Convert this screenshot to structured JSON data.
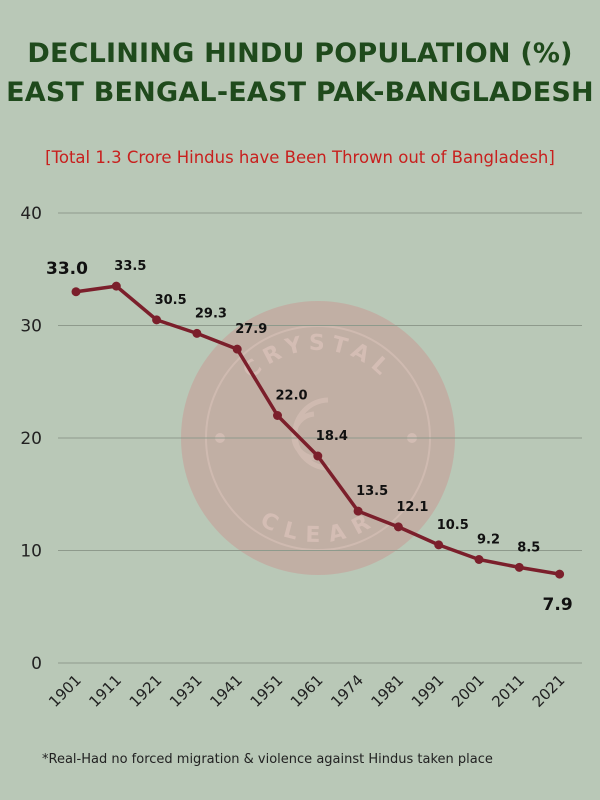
{
  "header": {
    "title_line1": "DECLINING HINDU POPULATION (%)",
    "title_line2": "EAST BENGAL-EAST PAK-BANGLADESH",
    "subtitle": "[Total 1.3 Crore Hindus have Been Thrown out of Bangladesh]"
  },
  "watermark": {
    "top_text": "CRYSTAL",
    "bottom_text": "CLEAR",
    "color": "#c89a95"
  },
  "footnote": "*Real-Had no forced migration &  violence against Hindus taken place",
  "colors": {
    "background": "#b9c8b7",
    "title": "#1f4a1c",
    "subtitle": "#c8201e",
    "line": "#7b1f2b",
    "grid": "#8e9a8c"
  },
  "chart_data": {
    "type": "line",
    "title": "DECLINING HINDU POPULATION (%)",
    "categories": [
      "1901",
      "1911",
      "1921",
      "1931",
      "1941",
      "1951",
      "1961",
      "1974",
      "1981",
      "1991",
      "2001",
      "2011",
      "2021"
    ],
    "values": [
      33.0,
      33.5,
      30.5,
      29.3,
      27.9,
      22.0,
      18.4,
      13.5,
      12.1,
      10.5,
      9.2,
      8.5,
      7.9
    ],
    "labels": [
      "33.0",
      "33.5",
      "30.5",
      "29.3",
      "27.9",
      "22.0",
      "18.4",
      "13.5",
      "12.1",
      "10.5",
      "9.2",
      "8.5",
      "7.9"
    ],
    "yticks": [
      0,
      10,
      20,
      30,
      40
    ],
    "ylim": [
      0,
      40
    ],
    "grid": true,
    "legend": "none"
  }
}
